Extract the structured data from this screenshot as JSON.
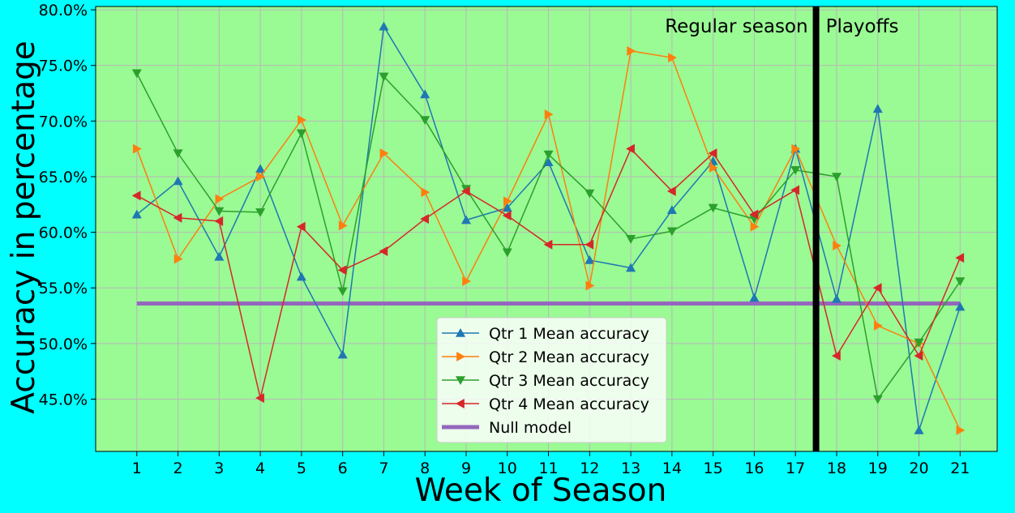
{
  "chart_data": {
    "type": "line",
    "xlabel": "Week of Season",
    "ylabel": "Accuracy in percentage",
    "x": [
      1,
      2,
      3,
      4,
      5,
      6,
      7,
      8,
      9,
      10,
      11,
      12,
      13,
      14,
      15,
      16,
      17,
      18,
      19,
      20,
      21
    ],
    "xlim": [
      0.0,
      21.9
    ],
    "ylim": [
      40.3,
      80.3
    ],
    "yticks": [
      "45.0%",
      "50.0%",
      "55.0%",
      "60.0%",
      "65.0%",
      "70.0%",
      "75.0%",
      "80.0%"
    ],
    "ytick_values": [
      45,
      50,
      55,
      60,
      65,
      70,
      75,
      80
    ],
    "xticks": [
      "1",
      "2",
      "3",
      "4",
      "5",
      "6",
      "7",
      "8",
      "9",
      "10",
      "11",
      "12",
      "13",
      "14",
      "15",
      "16",
      "17",
      "18",
      "19",
      "20",
      "21"
    ],
    "grid": true,
    "legend_position": "bottom-center",
    "background_color": "#9afa94",
    "figure_color": "#00ffff",
    "series": [
      {
        "name": "Qtr 1 Mean accuracy",
        "color": "#1f77b4",
        "marker": "triangle-up",
        "values": [
          61.6,
          64.6,
          57.8,
          65.7,
          56.0,
          49.0,
          78.5,
          72.4,
          61.1,
          62.2,
          66.3,
          57.5,
          56.8,
          62.0,
          66.4,
          54.1,
          67.5,
          54.0,
          71.1,
          42.2,
          53.3
        ]
      },
      {
        "name": "Qtr 2 Mean accuracy",
        "color": "#ff7f0e",
        "marker": "triangle-right",
        "values": [
          67.5,
          57.6,
          63.0,
          65.0,
          70.1,
          60.6,
          67.1,
          63.6,
          55.6,
          62.8,
          70.6,
          55.2,
          76.3,
          75.7,
          65.8,
          60.5,
          67.5,
          58.8,
          51.6,
          50.0,
          42.2
        ]
      },
      {
        "name": "Qtr 3 Mean accuracy",
        "color": "#2ca02c",
        "marker": "triangle-down",
        "values": [
          74.3,
          67.1,
          61.9,
          61.8,
          68.9,
          54.7,
          74.0,
          70.1,
          63.9,
          58.2,
          67.0,
          63.5,
          59.4,
          60.1,
          62.2,
          61.2,
          65.6,
          65.0,
          45.0,
          50.1,
          55.6
        ]
      },
      {
        "name": "Qtr 4 Mean accuracy",
        "color": "#d62728",
        "marker": "triangle-left",
        "values": [
          63.3,
          61.3,
          61.0,
          45.1,
          60.5,
          56.6,
          58.3,
          61.2,
          63.7,
          61.5,
          58.9,
          58.9,
          67.5,
          63.7,
          67.1,
          61.6,
          63.8,
          48.9,
          55.0,
          48.9,
          57.7
        ]
      }
    ],
    "null_model": {
      "name": "Null model",
      "color": "#9467bd",
      "value": 53.6,
      "x_range": [
        1,
        21
      ]
    },
    "divider": {
      "x": 17.5,
      "color": "#000000",
      "label_left": "Regular season",
      "label_right": "Playoffs"
    }
  }
}
